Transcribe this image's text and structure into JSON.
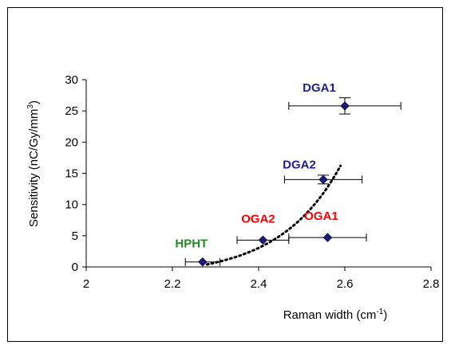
{
  "chart_data": {
    "type": "scatter",
    "xlabel": "Raman width (cm",
    "xlabel_sup": "-1",
    "xlabel_close": ")",
    "ylabel": "Sensitivity (nC/Gy/mm",
    "ylabel_sup": "3",
    "ylabel_close": ")",
    "xlim": [
      2,
      2.8
    ],
    "ylim": [
      0,
      30
    ],
    "xticks": [
      "2",
      "2.2",
      "2.4",
      "2.6",
      "2.8"
    ],
    "yticks": [
      "0",
      "5",
      "10",
      "15",
      "20",
      "25",
      "30"
    ],
    "grid": false,
    "points": [
      {
        "label": "HPHT",
        "x": 2.27,
        "y": 0.8,
        "xerr": [
          2.23,
          2.31
        ],
        "yerr": [
          0.8,
          0.8
        ],
        "color": "#228b22"
      },
      {
        "label": "OGA2",
        "x": 2.41,
        "y": 4.3,
        "xerr": [
          2.35,
          2.47
        ],
        "yerr": [
          4.3,
          4.3
        ],
        "color": "#ff0000"
      },
      {
        "label": "OGA1",
        "x": 2.56,
        "y": 4.7,
        "xerr": [
          2.47,
          2.65
        ],
        "yerr": [
          4.7,
          4.7
        ],
        "color": "#ff0000"
      },
      {
        "label": "DGA2",
        "x": 2.55,
        "y": 14.0,
        "xerr": [
          2.46,
          2.64
        ],
        "yerr": [
          13.3,
          14.7
        ],
        "color": "#1f1f8f"
      },
      {
        "label": "DGA1",
        "x": 2.6,
        "y": 25.8,
        "xerr": [
          2.47,
          2.73
        ],
        "yerr": [
          24.5,
          27.1
        ],
        "color": "#1f1f8f"
      }
    ],
    "trendline": {
      "style": "dotted",
      "x": [
        2.28,
        2.59
      ],
      "y": [
        0.4,
        16.2
      ],
      "color": "#000000"
    }
  }
}
